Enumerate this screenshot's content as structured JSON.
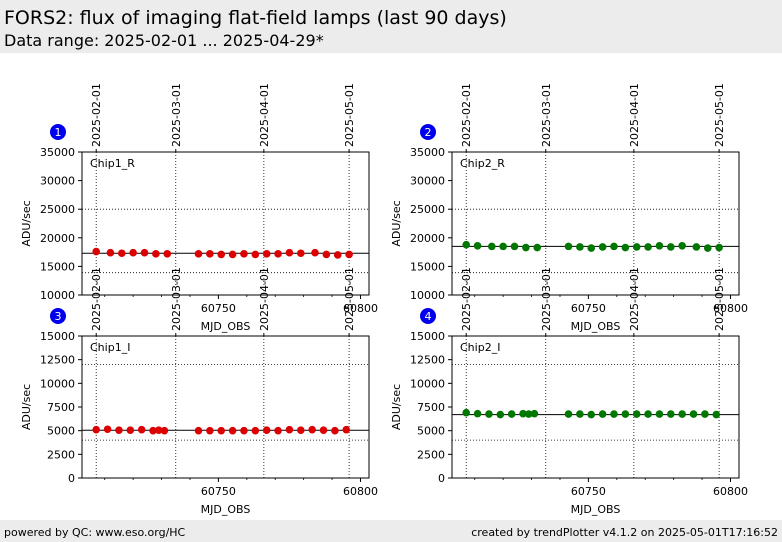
{
  "header": {
    "title": "FORS2: flux of imaging flat-field lamps (last 90 days)",
    "subtitle": "Data range: 2025-02-01 ... 2025-04-29*"
  },
  "footer": {
    "left": "powered by QC: www.eso.org/HC",
    "right": "created by trendPlotter v4.1.2 on 2025-05-01T17:16:52"
  },
  "chart_data": [
    {
      "type": "scatter",
      "panel_number": "1",
      "label": "Chip1_R",
      "xlabel": "MJD_OBS",
      "ylabel": "ADU/sec",
      "xlim": [
        60702,
        60803
      ],
      "ylim": [
        10000,
        35000
      ],
      "yticks": [
        10000,
        15000,
        20000,
        25000,
        30000,
        35000
      ],
      "xticks": [
        60750,
        60800
      ],
      "date_ticks": [
        {
          "mjd": 60707,
          "label": "2025-02-01"
        },
        {
          "mjd": 60735,
          "label": "2025-03-01"
        },
        {
          "mjd": 60766,
          "label": "2025-04-01"
        },
        {
          "mjd": 60796,
          "label": "2025-05-01"
        }
      ],
      "ref_line": 17300,
      "limit_lines": [
        13900,
        25000
      ],
      "marker_color": "#dd0000",
      "x": [
        60707,
        60712,
        60716,
        60720,
        60724,
        60728,
        60732,
        60743,
        60747,
        60751,
        60755,
        60759,
        60763,
        60767,
        60771,
        60775,
        60779,
        60784,
        60788,
        60792,
        60796
      ],
      "y": [
        17600,
        17400,
        17300,
        17400,
        17400,
        17200,
        17200,
        17200,
        17200,
        17100,
        17100,
        17200,
        17100,
        17200,
        17200,
        17400,
        17300,
        17400,
        17100,
        17000,
        17100
      ]
    },
    {
      "type": "scatter",
      "panel_number": "2",
      "label": "Chip2_R",
      "xlabel": "MJD_OBS",
      "ylabel": "ADU/sec",
      "xlim": [
        60702,
        60803
      ],
      "ylim": [
        10000,
        35000
      ],
      "yticks": [
        10000,
        15000,
        20000,
        25000,
        30000,
        35000
      ],
      "xticks": [
        60750,
        60800
      ],
      "date_ticks": [
        {
          "mjd": 60707,
          "label": "2025-02-01"
        },
        {
          "mjd": 60735,
          "label": "2025-03-01"
        },
        {
          "mjd": 60766,
          "label": "2025-04-01"
        },
        {
          "mjd": 60796,
          "label": "2025-05-01"
        }
      ],
      "ref_line": 18500,
      "limit_lines": [
        13900,
        25000
      ],
      "marker_color": "#007700",
      "x": [
        60707,
        60711,
        60716,
        60720,
        60724,
        60728,
        60732,
        60743,
        60747,
        60751,
        60755,
        60759,
        60763,
        60767,
        60771,
        60775,
        60779,
        60783,
        60788,
        60792,
        60796
      ],
      "y": [
        18800,
        18600,
        18500,
        18500,
        18500,
        18300,
        18300,
        18500,
        18400,
        18200,
        18400,
        18500,
        18300,
        18400,
        18400,
        18600,
        18400,
        18600,
        18400,
        18200,
        18300
      ]
    },
    {
      "type": "scatter",
      "panel_number": "3",
      "label": "Chip1_I",
      "xlabel": "MJD_OBS",
      "ylabel": "ADU/sec",
      "xlim": [
        60702,
        60803
      ],
      "ylim": [
        0,
        15000
      ],
      "yticks": [
        0,
        2500,
        5000,
        7500,
        10000,
        12500,
        15000
      ],
      "xticks": [
        60750,
        60800
      ],
      "date_ticks": [
        {
          "mjd": 60707,
          "label": "2025-02-01"
        },
        {
          "mjd": 60735,
          "label": "2025-03-01"
        },
        {
          "mjd": 60766,
          "label": "2025-04-01"
        },
        {
          "mjd": 60796,
          "label": "2025-05-01"
        }
      ],
      "ref_line": 5050,
      "limit_lines": [
        4000,
        12000
      ],
      "marker_color": "#dd0000",
      "x": [
        60707,
        60711,
        60715,
        60719,
        60723,
        60727,
        60729,
        60731,
        60743,
        60747,
        60751,
        60755,
        60759,
        60763,
        60767,
        60771,
        60775,
        60779,
        60783,
        60787,
        60791,
        60795
      ],
      "y": [
        5100,
        5150,
        5050,
        5050,
        5100,
        5000,
        5050,
        5000,
        5000,
        5000,
        5000,
        5000,
        5000,
        5000,
        5050,
        5000,
        5100,
        5050,
        5100,
        5050,
        5000,
        5100
      ]
    },
    {
      "type": "scatter",
      "panel_number": "4",
      "label": "Chip2_I",
      "xlabel": "MJD_OBS",
      "ylabel": "ADU/sec",
      "xlim": [
        60702,
        60803
      ],
      "ylim": [
        0,
        15000
      ],
      "yticks": [
        0,
        2500,
        5000,
        7500,
        10000,
        12500,
        15000
      ],
      "xticks": [
        60750,
        60800
      ],
      "date_ticks": [
        {
          "mjd": 60707,
          "label": "2025-02-01"
        },
        {
          "mjd": 60735,
          "label": "2025-03-01"
        },
        {
          "mjd": 60766,
          "label": "2025-04-01"
        },
        {
          "mjd": 60796,
          "label": "2025-05-01"
        }
      ],
      "ref_line": 6700,
      "limit_lines": [
        4000,
        12000
      ],
      "marker_color": "#007700",
      "x": [
        60707,
        60711,
        60715,
        60719,
        60723,
        60727,
        60729,
        60731,
        60743,
        60747,
        60751,
        60755,
        60759,
        60763,
        60767,
        60771,
        60775,
        60779,
        60783,
        60787,
        60791,
        60795
      ],
      "y": [
        6900,
        6800,
        6750,
        6700,
        6750,
        6800,
        6750,
        6800,
        6750,
        6750,
        6700,
        6750,
        6750,
        6750,
        6750,
        6750,
        6750,
        6750,
        6750,
        6750,
        6750,
        6700
      ]
    }
  ]
}
